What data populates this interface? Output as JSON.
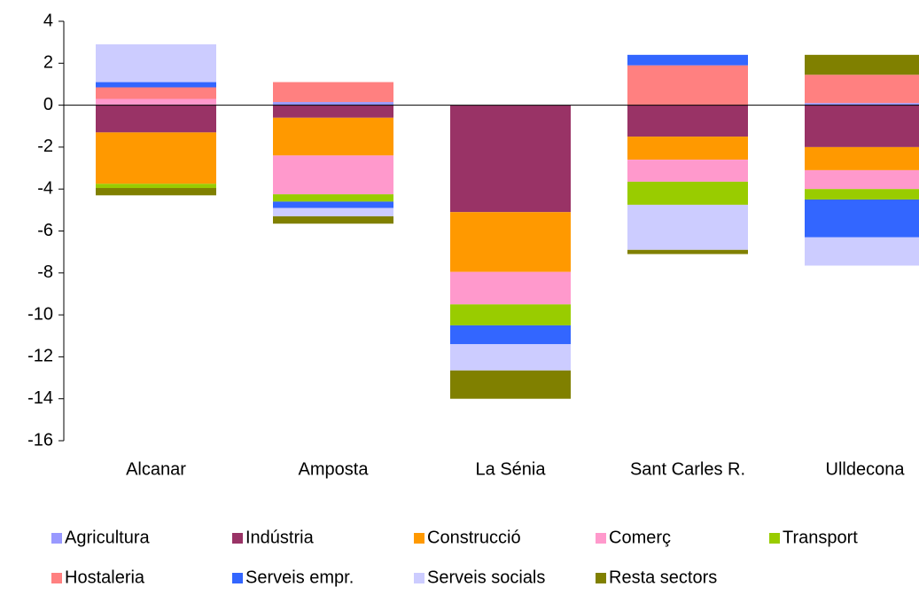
{
  "chart_data": {
    "type": "stacked_bar",
    "categories": [
      "Alcanar",
      "Amposta",
      "La Sénia",
      "Sant Carles R.",
      "Ulldecona"
    ],
    "series": [
      {
        "name": "Agricultura",
        "color": "#9999ff",
        "values": [
          0,
          0.15,
          0,
          0,
          0.1
        ]
      },
      {
        "name": "Indústria",
        "color": "#993366",
        "values": [
          -1.3,
          -0.6,
          -5.1,
          -1.5,
          -2.0
        ]
      },
      {
        "name": "Construcció",
        "color": "#ff9900",
        "values": [
          -2.45,
          -1.8,
          -2.85,
          -1.1,
          -1.1
        ]
      },
      {
        "name": "Comerç",
        "color": "#ff99cc",
        "values": [
          0.3,
          -1.85,
          -1.55,
          -1.05,
          -0.9
        ]
      },
      {
        "name": "Transport",
        "color": "#99cc00",
        "values": [
          -0.2,
          -0.35,
          -1.0,
          -1.1,
          -0.5
        ]
      },
      {
        "name": "Hostaleria",
        "color": "#ff8080",
        "values": [
          0.55,
          0.95,
          0,
          1.9,
          1.35
        ]
      },
      {
        "name": "Serveis empr.",
        "color": "#3366ff",
        "values": [
          0.25,
          -0.3,
          -0.9,
          0.5,
          -1.8
        ]
      },
      {
        "name": "Serveis socials",
        "color": "#ccccff",
        "values": [
          1.8,
          -0.4,
          -1.25,
          -2.15,
          -1.35
        ]
      },
      {
        "name": "Resta sectors",
        "color": "#808000",
        "values": [
          -0.35,
          -0.35,
          -1.35,
          -0.2,
          0.95
        ]
      }
    ],
    "ylim": [
      -16,
      4
    ],
    "yticks": [
      -16,
      -14,
      -12,
      -10,
      -8,
      -6,
      -4,
      -2,
      0,
      2,
      4
    ],
    "legend": "bottom"
  }
}
